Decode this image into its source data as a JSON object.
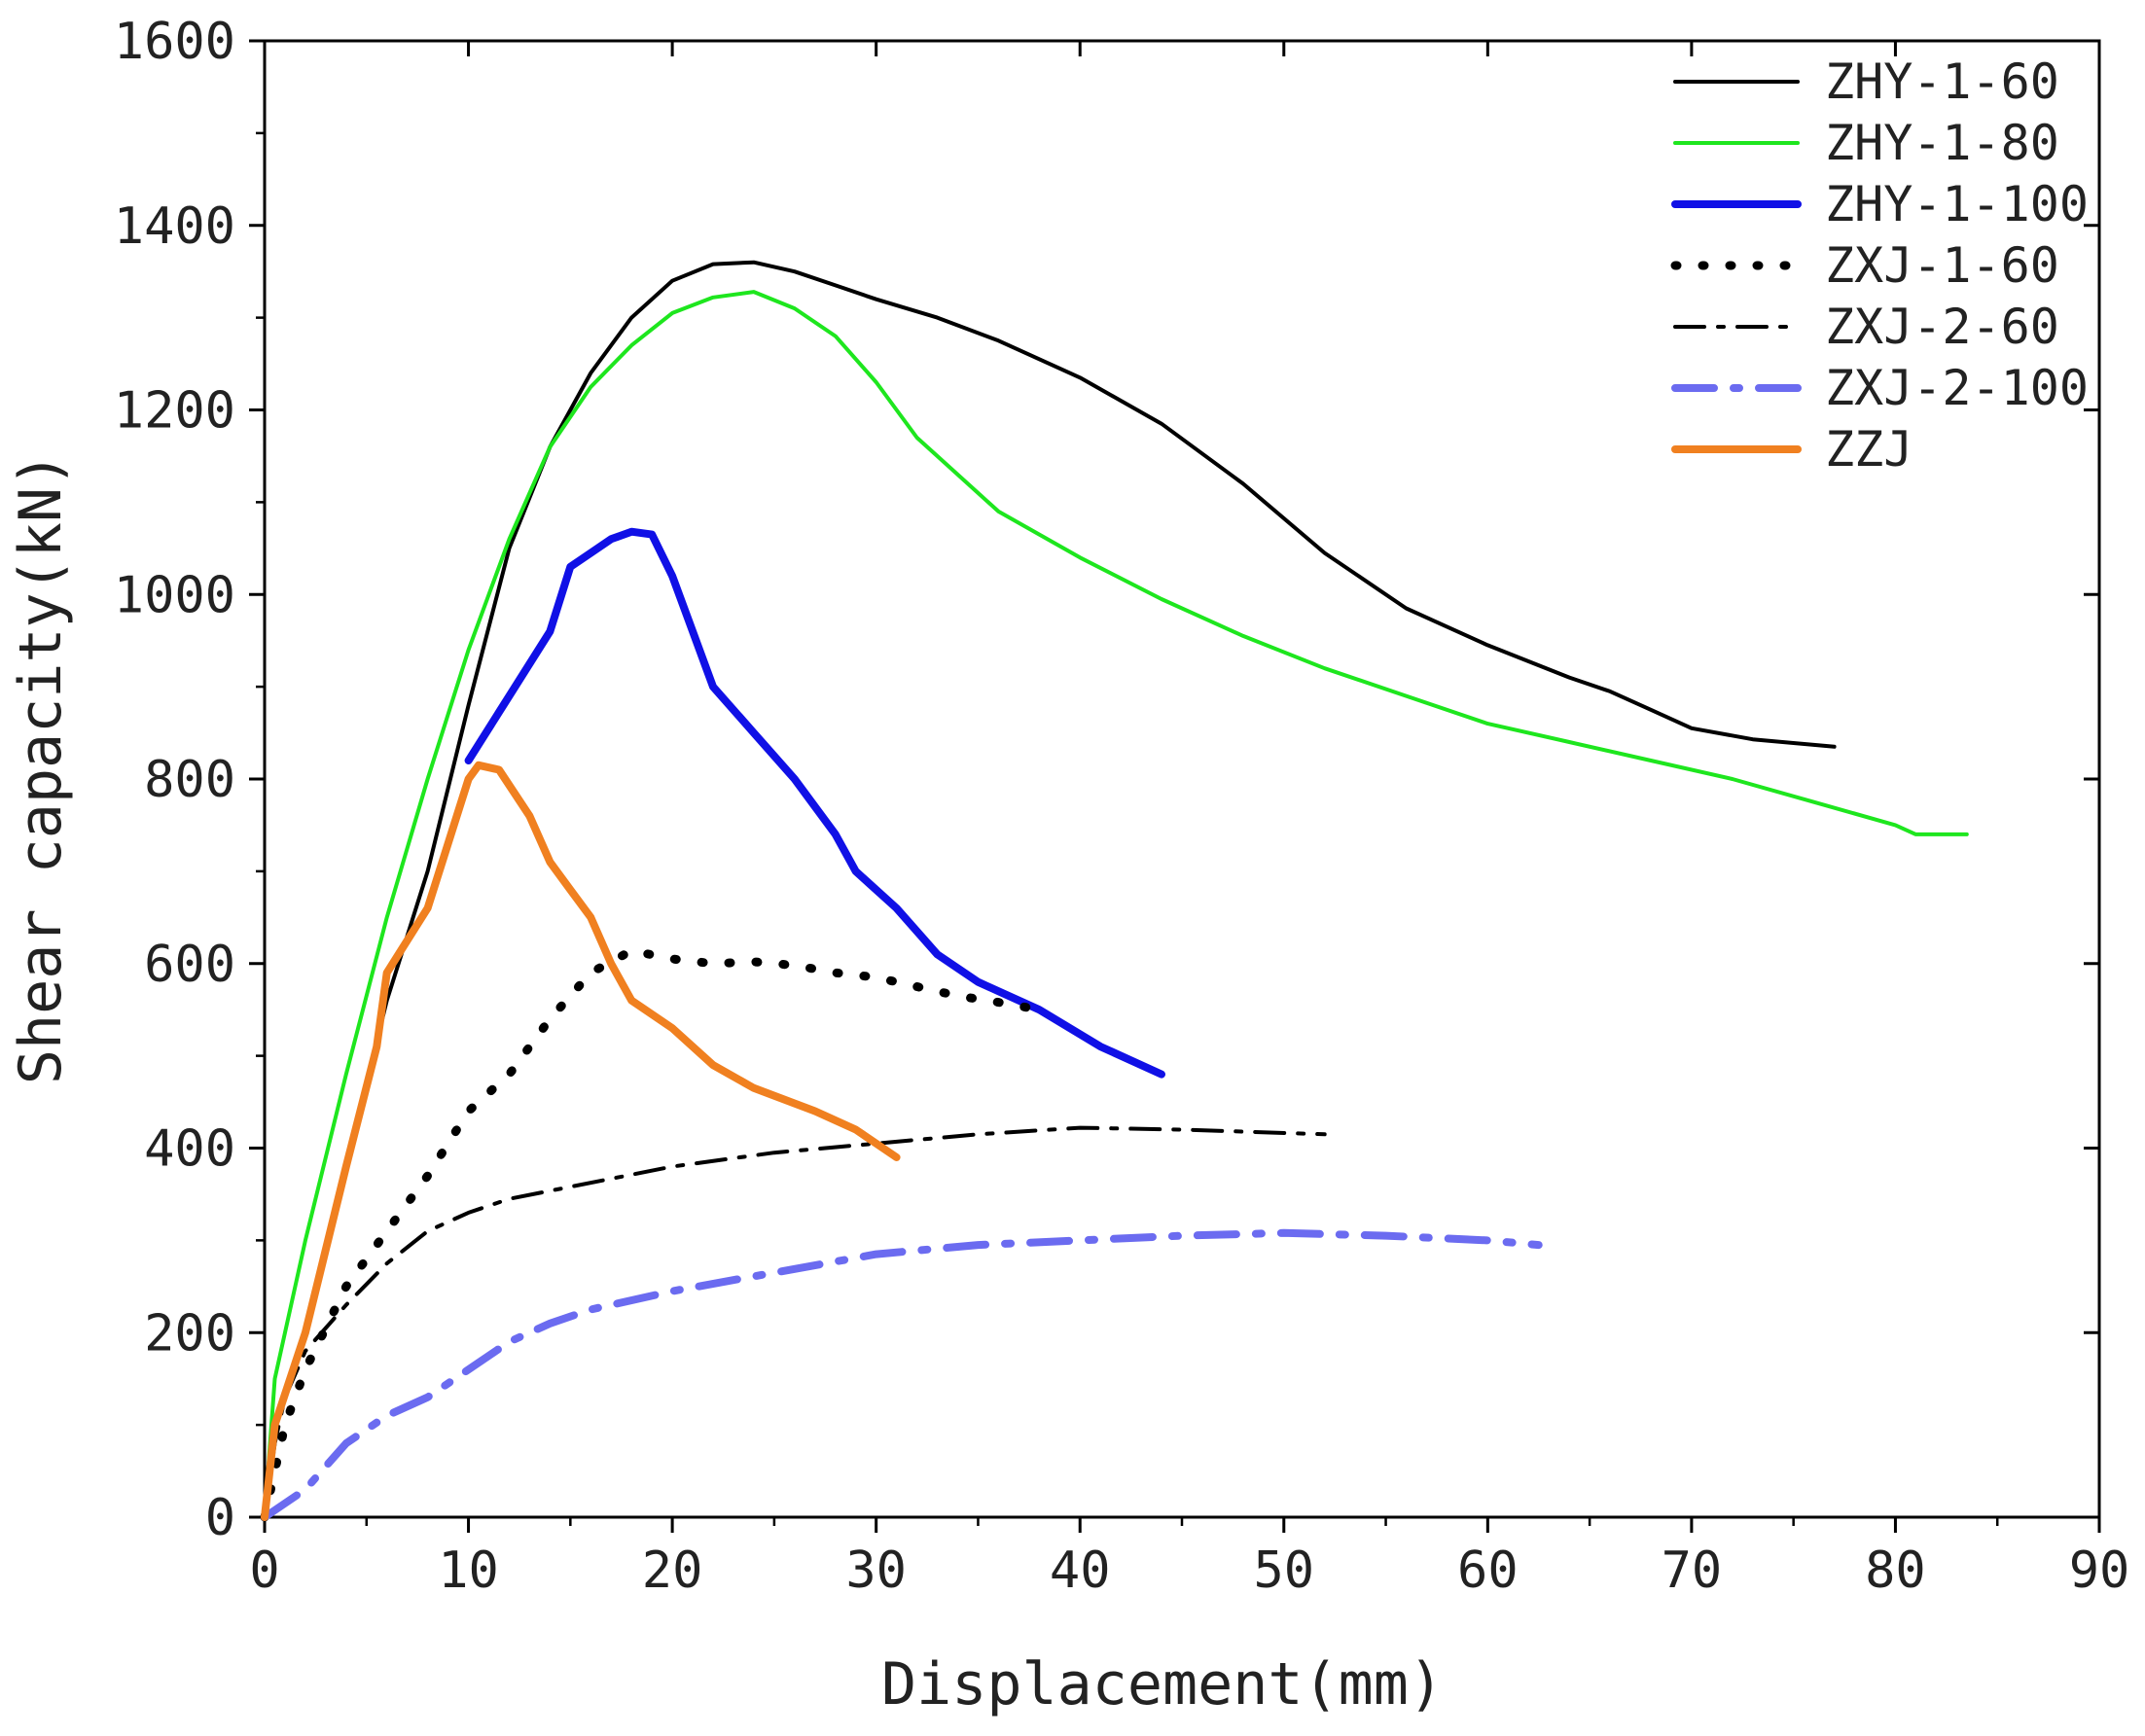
{
  "chart_data": {
    "type": "line",
    "title": "",
    "xlabel": "Displacement(mm)",
    "ylabel": "Shear capacity(kN)",
    "xlim": [
      0,
      90
    ],
    "ylim": [
      0,
      1600
    ],
    "xticks": [
      0,
      10,
      20,
      30,
      40,
      50,
      60,
      70,
      80,
      90
    ],
    "yticks": [
      0,
      200,
      400,
      600,
      800,
      1000,
      1200,
      1400,
      1600
    ],
    "grid": false,
    "legend_position": "top-right",
    "series": [
      {
        "name": "ZHY-1-60",
        "color": "#000000",
        "style": "solid",
        "points": [
          [
            0,
            0
          ],
          [
            0.5,
            100
          ],
          [
            2,
            200
          ],
          [
            4,
            380
          ],
          [
            6,
            560
          ],
          [
            8,
            700
          ],
          [
            10,
            880
          ],
          [
            12,
            1050
          ],
          [
            14,
            1160
          ],
          [
            16,
            1240
          ],
          [
            18,
            1300
          ],
          [
            20,
            1340
          ],
          [
            22,
            1358
          ],
          [
            24,
            1360
          ],
          [
            26,
            1350
          ],
          [
            28,
            1335
          ],
          [
            30,
            1320
          ],
          [
            33,
            1300
          ],
          [
            36,
            1275
          ],
          [
            40,
            1235
          ],
          [
            44,
            1185
          ],
          [
            48,
            1120
          ],
          [
            52,
            1045
          ],
          [
            56,
            985
          ],
          [
            60,
            945
          ],
          [
            64,
            910
          ],
          [
            66,
            895
          ],
          [
            68,
            875
          ],
          [
            70,
            855
          ],
          [
            73,
            843
          ],
          [
            77,
            835
          ]
        ]
      },
      {
        "name": "ZHY-1-80",
        "color": "#1ee61e",
        "style": "solid",
        "points": [
          [
            0,
            0
          ],
          [
            0.5,
            150
          ],
          [
            2,
            300
          ],
          [
            4,
            480
          ],
          [
            6,
            650
          ],
          [
            8,
            800
          ],
          [
            10,
            940
          ],
          [
            12,
            1060
          ],
          [
            14,
            1160
          ],
          [
            16,
            1225
          ],
          [
            18,
            1270
          ],
          [
            20,
            1305
          ],
          [
            22,
            1322
          ],
          [
            24,
            1328
          ],
          [
            26,
            1310
          ],
          [
            28,
            1280
          ],
          [
            30,
            1230
          ],
          [
            32,
            1170
          ],
          [
            36,
            1090
          ],
          [
            40,
            1040
          ],
          [
            44,
            995
          ],
          [
            48,
            955
          ],
          [
            52,
            920
          ],
          [
            56,
            890
          ],
          [
            60,
            860
          ],
          [
            64,
            840
          ],
          [
            68,
            820
          ],
          [
            72,
            800
          ],
          [
            76,
            775
          ],
          [
            80,
            750
          ],
          [
            81,
            740
          ],
          [
            83.5,
            740
          ]
        ]
      },
      {
        "name": "ZHY-1-100",
        "color": "#1010e6",
        "style": "solid",
        "points": [
          [
            10,
            820
          ],
          [
            12,
            890
          ],
          [
            14,
            960
          ],
          [
            15,
            1030
          ],
          [
            16,
            1045
          ],
          [
            17,
            1060
          ],
          [
            18,
            1068
          ],
          [
            19,
            1065
          ],
          [
            20,
            1020
          ],
          [
            21,
            960
          ],
          [
            22,
            900
          ],
          [
            24,
            850
          ],
          [
            26,
            800
          ],
          [
            28,
            740
          ],
          [
            29,
            700
          ],
          [
            31,
            660
          ],
          [
            33,
            610
          ],
          [
            35,
            580
          ],
          [
            38,
            550
          ],
          [
            41,
            510
          ],
          [
            44,
            480
          ]
        ]
      },
      {
        "name": "ZXJ-1-60",
        "color": "#000000",
        "style": "dotted",
        "points": [
          [
            0,
            0
          ],
          [
            1,
            100
          ],
          [
            2,
            160
          ],
          [
            4,
            250
          ],
          [
            6,
            310
          ],
          [
            8,
            370
          ],
          [
            10,
            440
          ],
          [
            12,
            480
          ],
          [
            14,
            540
          ],
          [
            16,
            590
          ],
          [
            18,
            614
          ],
          [
            20,
            605
          ],
          [
            22,
            600
          ],
          [
            24,
            602
          ],
          [
            26,
            598
          ],
          [
            28,
            590
          ],
          [
            30,
            585
          ],
          [
            32,
            575
          ],
          [
            34,
            565
          ],
          [
            36,
            558
          ],
          [
            38,
            550
          ]
        ]
      },
      {
        "name": "ZXJ-2-60",
        "color": "#000000",
        "style": "dashdot",
        "points": [
          [
            0,
            0
          ],
          [
            0.5,
            80
          ],
          [
            1,
            130
          ],
          [
            2,
            180
          ],
          [
            4,
            230
          ],
          [
            6,
            275
          ],
          [
            8,
            310
          ],
          [
            10,
            330
          ],
          [
            12,
            345
          ],
          [
            15,
            358
          ],
          [
            20,
            380
          ],
          [
            25,
            395
          ],
          [
            30,
            405
          ],
          [
            35,
            415
          ],
          [
            40,
            422
          ],
          [
            45,
            420
          ],
          [
            52,
            415
          ]
        ]
      },
      {
        "name": "ZXJ-2-100",
        "color": "#6b6bf0",
        "style": "dashdot",
        "points": [
          [
            0,
            0
          ],
          [
            2,
            30
          ],
          [
            4,
            80
          ],
          [
            6,
            110
          ],
          [
            8,
            130
          ],
          [
            10,
            160
          ],
          [
            12,
            190
          ],
          [
            14,
            210
          ],
          [
            16,
            225
          ],
          [
            20,
            245
          ],
          [
            25,
            265
          ],
          [
            30,
            285
          ],
          [
            35,
            295
          ],
          [
            40,
            300
          ],
          [
            45,
            305
          ],
          [
            50,
            308
          ],
          [
            55,
            305
          ],
          [
            60,
            300
          ],
          [
            62.5,
            295
          ]
        ]
      },
      {
        "name": "ZZJ",
        "color": "#f08020",
        "style": "solid",
        "points": [
          [
            0,
            0
          ],
          [
            0.5,
            100
          ],
          [
            2,
            200
          ],
          [
            4,
            380
          ],
          [
            5.5,
            510
          ],
          [
            6,
            590
          ],
          [
            8,
            660
          ],
          [
            10,
            800
          ],
          [
            10.5,
            815
          ],
          [
            11.5,
            810
          ],
          [
            13,
            760
          ],
          [
            14,
            710
          ],
          [
            15,
            680
          ],
          [
            16,
            650
          ],
          [
            17,
            600
          ],
          [
            18,
            560
          ],
          [
            20,
            530
          ],
          [
            22,
            490
          ],
          [
            24,
            465
          ],
          [
            27,
            440
          ],
          [
            29,
            420
          ],
          [
            31,
            390
          ]
        ]
      }
    ]
  }
}
